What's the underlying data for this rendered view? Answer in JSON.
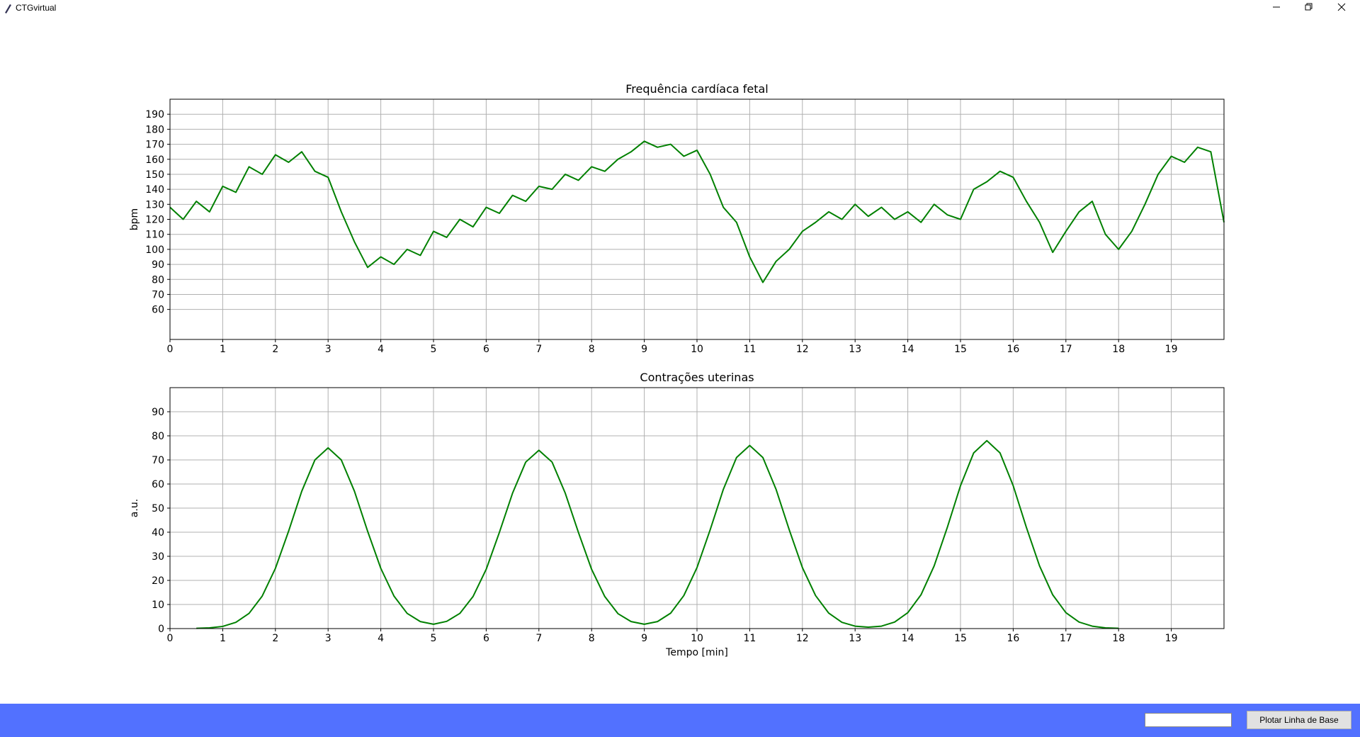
{
  "window_title": "CTGvirtual",
  "button_label": "Plotar Linha de Base",
  "chart_data": [
    {
      "type": "line",
      "title": "Frequência cardíaca fetal",
      "ylabel": "bpm",
      "color": "#008000",
      "grid": true,
      "xlim": [
        0,
        20
      ],
      "ylim": [
        40,
        200
      ],
      "xticks": [
        0,
        1,
        2,
        3,
        4,
        5,
        6,
        7,
        8,
        9,
        10,
        11,
        12,
        13,
        14,
        15,
        16,
        17,
        18,
        19
      ],
      "yticks": [
        60,
        70,
        80,
        90,
        100,
        110,
        120,
        130,
        140,
        150,
        160,
        170,
        180,
        190
      ],
      "x": [
        0,
        0.25,
        0.5,
        0.75,
        1,
        1.25,
        1.5,
        1.75,
        2,
        2.25,
        2.5,
        2.75,
        3,
        3.25,
        3.5,
        3.75,
        4,
        4.25,
        4.5,
        4.75,
        5,
        5.25,
        5.5,
        5.75,
        6,
        6.25,
        6.5,
        6.75,
        7,
        7.25,
        7.5,
        7.75,
        8,
        8.25,
        8.5,
        8.75,
        9,
        9.25,
        9.5,
        9.75,
        10,
        10.25,
        10.5,
        10.75,
        11,
        11.25,
        11.5,
        11.75,
        12,
        12.25,
        12.5,
        12.75,
        13,
        13.25,
        13.5,
        13.75,
        14,
        14.25,
        14.5,
        14.75,
        15,
        15.25,
        15.5,
        15.75,
        16,
        16.25,
        16.5,
        16.75,
        17,
        17.25,
        17.5,
        17.75,
        18,
        18.25,
        18.5,
        18.75,
        19,
        19.25,
        19.5,
        19.75,
        20
      ],
      "values": [
        128,
        120,
        132,
        125,
        142,
        138,
        155,
        150,
        163,
        158,
        165,
        152,
        148,
        125,
        105,
        88,
        95,
        90,
        100,
        96,
        112,
        108,
        120,
        115,
        128,
        124,
        136,
        132,
        142,
        140,
        150,
        146,
        155,
        152,
        160,
        165,
        172,
        168,
        170,
        162,
        166,
        150,
        128,
        118,
        95,
        78,
        92,
        100,
        112,
        118,
        125,
        120,
        130,
        122,
        128,
        120,
        125,
        118,
        130,
        123,
        120,
        140,
        145,
        152,
        148,
        132,
        118,
        98,
        112,
        125,
        132,
        110,
        100,
        112,
        130,
        150,
        162,
        158,
        168,
        165,
        118
      ],
      "values_note_unused": null
    },
    {
      "type": "line",
      "title": "Contrações uterinas",
      "ylabel": "a.u.",
      "xlabel": "Tempo [min]",
      "color": "#008000",
      "grid": true,
      "xlim": [
        0,
        20
      ],
      "ylim": [
        0,
        100
      ],
      "xticks": [
        0,
        1,
        2,
        3,
        4,
        5,
        6,
        7,
        8,
        9,
        10,
        11,
        12,
        13,
        14,
        15,
        16,
        17,
        18,
        19
      ],
      "yticks": [
        0,
        10,
        20,
        30,
        40,
        50,
        60,
        70,
        80,
        90
      ],
      "x": [
        0.5,
        0.75,
        1,
        1.25,
        1.5,
        1.75,
        2,
        2.25,
        2.5,
        2.75,
        3,
        3.25,
        3.5,
        3.75,
        4,
        4.25,
        4.5,
        4.75,
        5,
        5.25,
        5.5,
        5.75,
        6,
        6.25,
        6.5,
        6.75,
        7,
        7.25,
        7.5,
        7.75,
        8,
        8.25,
        8.5,
        8.75,
        9,
        9.25,
        9.5,
        9.75,
        10,
        10.25,
        10.5,
        10.75,
        11,
        11.25,
        11.5,
        11.75,
        12,
        12.25,
        12.5,
        12.75,
        13,
        13.25,
        13.5,
        13.75,
        14,
        14.25,
        14.5,
        14.75,
        15,
        15.25,
        15.5,
        15.75,
        16,
        16.25,
        16.5,
        16.75,
        17,
        17.25,
        17.5,
        17.75,
        18
      ],
      "values": [
        0.1,
        0.3,
        0.9,
        2.6,
        6.3,
        13.5,
        25,
        40.4,
        57,
        70,
        75,
        70,
        57,
        40.4,
        25,
        13.5,
        6.3,
        2.9,
        1.8,
        3,
        6.3,
        13.3,
        24.6,
        39.9,
        56.2,
        69.1,
        74,
        69.1,
        56.2,
        39.9,
        24.6,
        13.3,
        6.2,
        2.9,
        1.8,
        2.9,
        6.4,
        13.7,
        25.3,
        41,
        57.8,
        71,
        76,
        71,
        57.8,
        41,
        25.3,
        13.7,
        6.4,
        2.6,
        1,
        0.6,
        1,
        2.7,
        6.6,
        14,
        26,
        42,
        59.3,
        72.9,
        78,
        72.9,
        59.3,
        42,
        26,
        14,
        6.6,
        2.7,
        1,
        0.3,
        0.1
      ]
    }
  ]
}
